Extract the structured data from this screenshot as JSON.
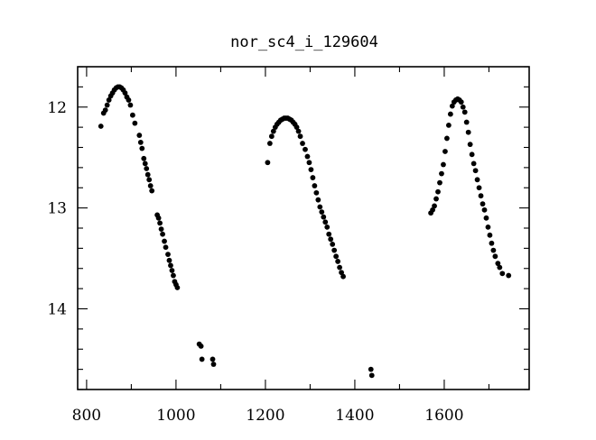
{
  "chart_data": {
    "type": "scatter",
    "title": "nor_sc4_i_129604",
    "xlabel": "",
    "ylabel": "",
    "xlim": [
      780,
      1790
    ],
    "ylim": [
      14.8,
      11.6
    ],
    "y_inverted": true,
    "grid": false,
    "legend": "none",
    "marker_color": "#000000",
    "x_ticks": [
      800,
      1000,
      1200,
      1400,
      1600
    ],
    "x_minor_step": 100,
    "y_ticks": [
      12,
      13,
      14
    ],
    "y_minor_step": 0.2,
    "x_tick_labels": [
      "800",
      "1000",
      "1200",
      "1400",
      "1600"
    ],
    "y_tick_labels": [
      "12",
      "13",
      "14"
    ],
    "series": [
      {
        "points": [
          [
            832,
            12.19
          ],
          [
            838,
            12.06
          ],
          [
            842,
            12.03
          ],
          [
            846,
            11.98
          ],
          [
            850,
            11.93
          ],
          [
            854,
            11.89
          ],
          [
            858,
            11.86
          ],
          [
            862,
            11.83
          ],
          [
            866,
            11.81
          ],
          [
            870,
            11.8
          ],
          [
            874,
            11.8
          ],
          [
            878,
            11.81
          ],
          [
            882,
            11.83
          ],
          [
            886,
            11.86
          ],
          [
            890,
            11.9
          ],
          [
            894,
            11.93
          ],
          [
            898,
            11.98
          ],
          [
            903,
            12.08
          ],
          [
            908,
            12.16
          ],
          [
            918,
            12.28
          ],
          [
            921,
            12.35
          ],
          [
            924,
            12.41
          ],
          [
            928,
            12.51
          ],
          [
            931,
            12.56
          ],
          [
            934,
            12.61
          ],
          [
            937,
            12.67
          ],
          [
            940,
            12.72
          ],
          [
            943,
            12.78
          ],
          [
            946,
            12.83
          ],
          [
            958,
            13.07
          ],
          [
            961,
            13.1
          ],
          [
            964,
            13.15
          ],
          [
            967,
            13.21
          ],
          [
            970,
            13.26
          ],
          [
            974,
            13.33
          ],
          [
            977,
            13.39
          ],
          [
            982,
            13.46
          ],
          [
            985,
            13.52
          ],
          [
            988,
            13.57
          ],
          [
            991,
            13.62
          ],
          [
            994,
            13.67
          ],
          [
            997,
            13.73
          ],
          [
            1000,
            13.76
          ],
          [
            1003,
            13.79
          ],
          [
            1052,
            14.35
          ],
          [
            1056,
            14.37
          ],
          [
            1058,
            14.5
          ],
          [
            1082,
            14.5
          ],
          [
            1084,
            14.55
          ],
          [
            1205,
            12.55
          ],
          [
            1210,
            12.36
          ],
          [
            1214,
            12.29
          ],
          [
            1218,
            12.24
          ],
          [
            1222,
            12.2
          ],
          [
            1226,
            12.17
          ],
          [
            1230,
            12.15
          ],
          [
            1234,
            12.13
          ],
          [
            1238,
            12.12
          ],
          [
            1242,
            12.11
          ],
          [
            1246,
            12.11
          ],
          [
            1250,
            12.11
          ],
          [
            1254,
            12.12
          ],
          [
            1258,
            12.13
          ],
          [
            1262,
            12.15
          ],
          [
            1266,
            12.17
          ],
          [
            1270,
            12.2
          ],
          [
            1274,
            12.24
          ],
          [
            1278,
            12.29
          ],
          [
            1283,
            12.36
          ],
          [
            1289,
            12.42
          ],
          [
            1294,
            12.49
          ],
          [
            1298,
            12.55
          ],
          [
            1302,
            12.62
          ],
          [
            1306,
            12.7
          ],
          [
            1310,
            12.78
          ],
          [
            1314,
            12.85
          ],
          [
            1318,
            12.92
          ],
          [
            1322,
            12.99
          ],
          [
            1326,
            13.04
          ],
          [
            1330,
            13.09
          ],
          [
            1334,
            13.14
          ],
          [
            1338,
            13.19
          ],
          [
            1342,
            13.26
          ],
          [
            1346,
            13.31
          ],
          [
            1350,
            13.36
          ],
          [
            1354,
            13.42
          ],
          [
            1358,
            13.48
          ],
          [
            1362,
            13.53
          ],
          [
            1366,
            13.59
          ],
          [
            1370,
            13.64
          ],
          [
            1374,
            13.68
          ],
          [
            1436,
            14.6
          ],
          [
            1438,
            14.66
          ],
          [
            1570,
            13.05
          ],
          [
            1574,
            13.02
          ],
          [
            1578,
            12.98
          ],
          [
            1582,
            12.91
          ],
          [
            1586,
            12.84
          ],
          [
            1590,
            12.75
          ],
          [
            1594,
            12.66
          ],
          [
            1598,
            12.57
          ],
          [
            1602,
            12.44
          ],
          [
            1606,
            12.31
          ],
          [
            1610,
            12.18
          ],
          [
            1614,
            12.07
          ],
          [
            1618,
            11.99
          ],
          [
            1622,
            11.95
          ],
          [
            1626,
            11.93
          ],
          [
            1630,
            11.92
          ],
          [
            1634,
            11.93
          ],
          [
            1638,
            11.95
          ],
          [
            1642,
            12.0
          ],
          [
            1646,
            12.05
          ],
          [
            1650,
            12.15
          ],
          [
            1654,
            12.25
          ],
          [
            1658,
            12.37
          ],
          [
            1662,
            12.47
          ],
          [
            1666,
            12.56
          ],
          [
            1670,
            12.63
          ],
          [
            1674,
            12.72
          ],
          [
            1678,
            12.8
          ],
          [
            1682,
            12.88
          ],
          [
            1686,
            12.96
          ],
          [
            1690,
            13.02
          ],
          [
            1694,
            13.1
          ],
          [
            1698,
            13.19
          ],
          [
            1702,
            13.27
          ],
          [
            1706,
            13.35
          ],
          [
            1710,
            13.42
          ],
          [
            1714,
            13.48
          ],
          [
            1720,
            13.55
          ],
          [
            1724,
            13.59
          ],
          [
            1730,
            13.65
          ],
          [
            1744,
            13.67
          ]
        ]
      }
    ]
  }
}
